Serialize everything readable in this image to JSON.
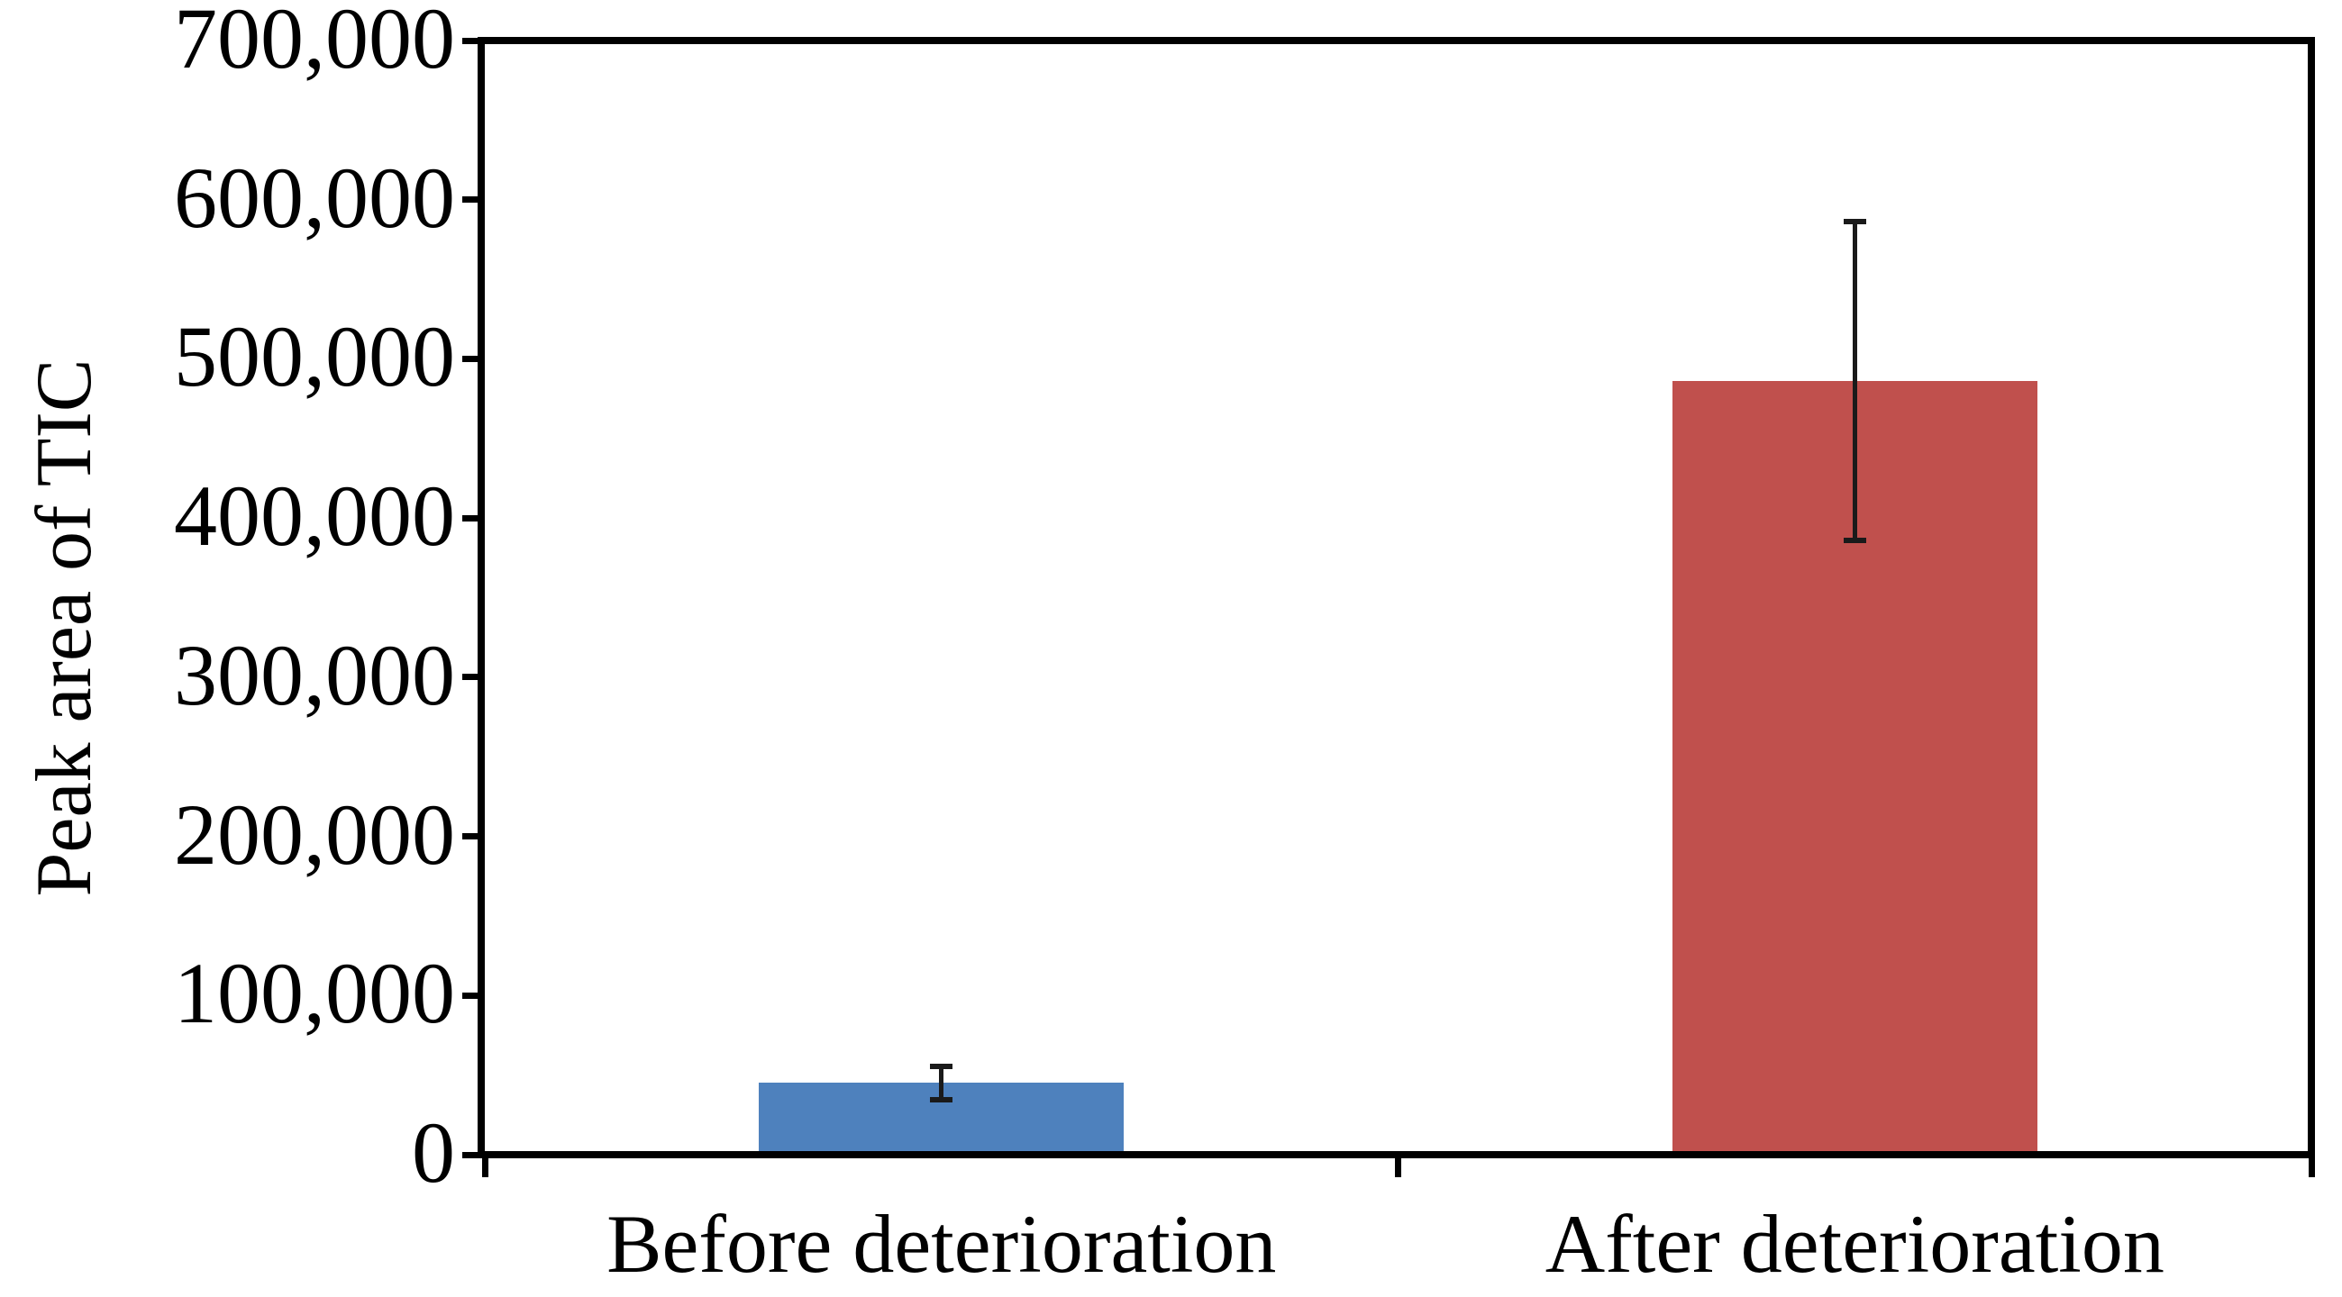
{
  "chart_data": {
    "type": "bar",
    "title": "",
    "ylabel": "Peak area of TIC",
    "xlabel": "",
    "categories": [
      "Before deterioration",
      "After deterioration"
    ],
    "values": [
      45000,
      486000
    ],
    "error_bars": {
      "plus": [
        10500,
        100000
      ],
      "minus": [
        10500,
        100000
      ]
    },
    "bar_colors": [
      "#4E81BD",
      "#C0504D"
    ],
    "ylim": [
      0,
      700000
    ],
    "ytick_values": [
      0,
      100000,
      200000,
      300000,
      400000,
      500000,
      600000,
      700000
    ],
    "ytick_labels": [
      "0",
      "100,000",
      "200,000",
      "300,000",
      "400,000",
      "500,000",
      "600,000",
      "700,000"
    ],
    "grid": false,
    "legend": "none",
    "frame": true,
    "axis_color": "#000000",
    "error_bar_color": "#1a1a1a",
    "background_color": "#ffffff"
  }
}
